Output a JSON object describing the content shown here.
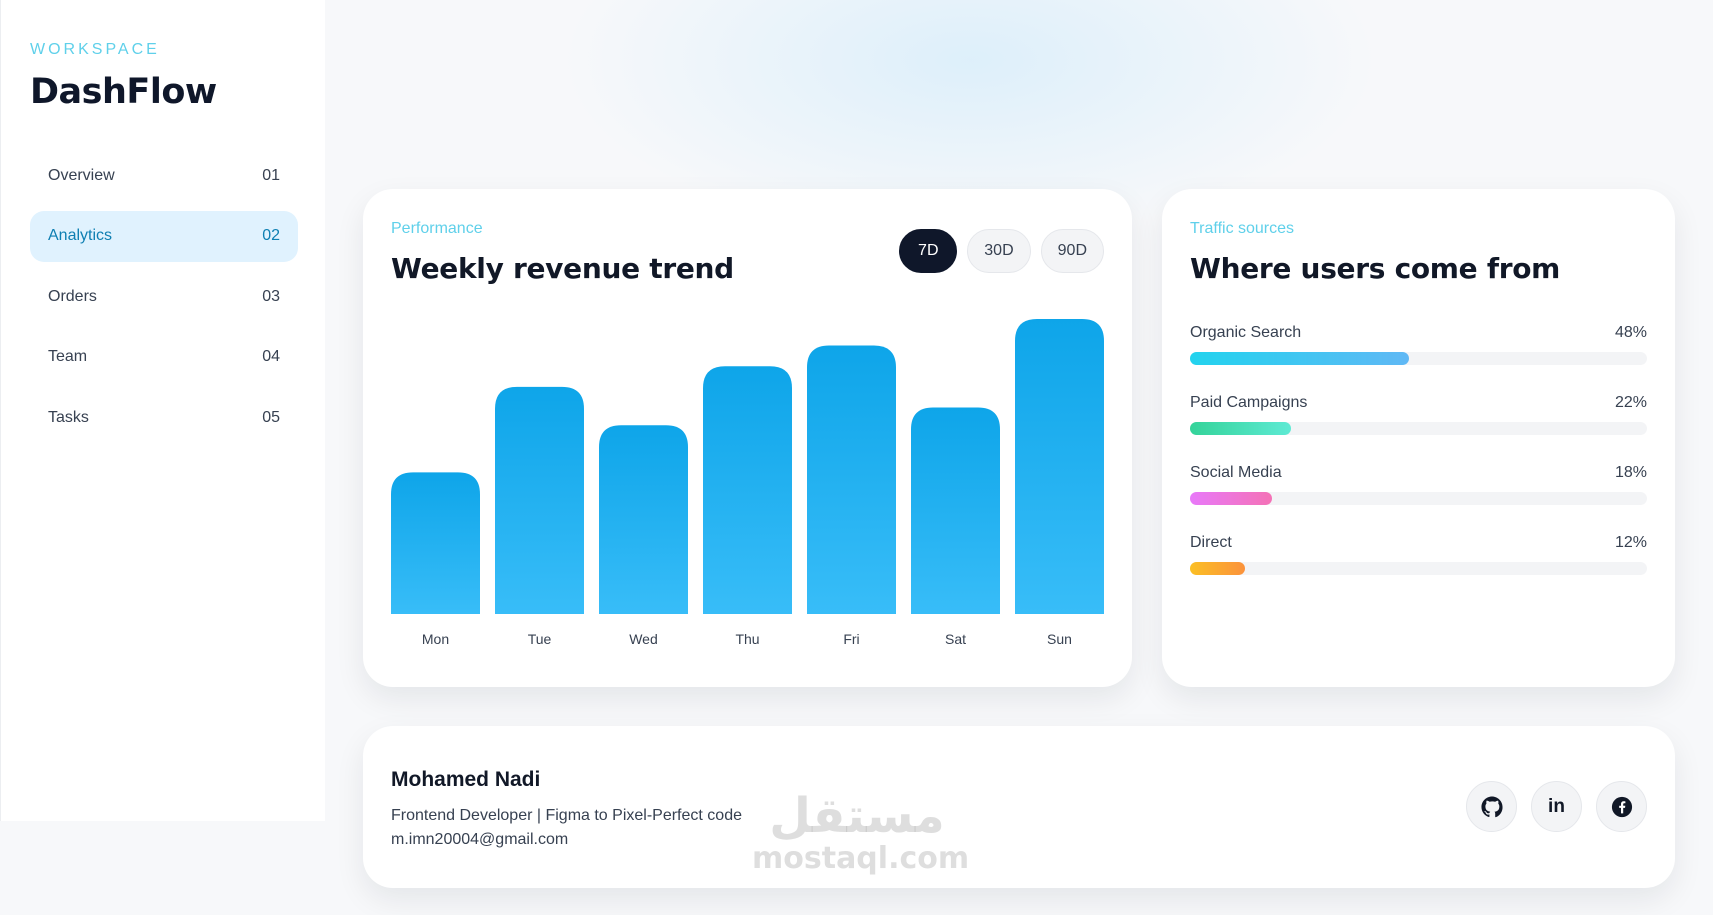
{
  "sidebar": {
    "workspace_label": "WORKSPACE",
    "brand": "DashFlow",
    "items": [
      {
        "label": "Overview",
        "num": "01",
        "active": false
      },
      {
        "label": "Analytics",
        "num": "02",
        "active": true
      },
      {
        "label": "Orders",
        "num": "03",
        "active": false
      },
      {
        "label": "Team",
        "num": "04",
        "active": false
      },
      {
        "label": "Tasks",
        "num": "05",
        "active": false
      }
    ]
  },
  "revenue": {
    "eyebrow": "Performance",
    "title": "Weekly revenue trend",
    "ranges": [
      {
        "label": "7D",
        "active": true
      },
      {
        "label": "30D",
        "active": false
      },
      {
        "label": "90D",
        "active": false
      }
    ]
  },
  "chart_data": {
    "type": "bar",
    "categories": [
      "Mon",
      "Tue",
      "Wed",
      "Thu",
      "Fri",
      "Sat",
      "Sun"
    ],
    "values": [
      48,
      77,
      64,
      84,
      91,
      70,
      100
    ],
    "ylim": [
      0,
      100
    ],
    "title": "",
    "xlabel": "",
    "ylabel": "",
    "grid": false,
    "color_top": "#0ea5e9",
    "color_bottom": "#38bdf8"
  },
  "traffic": {
    "eyebrow": "Traffic sources",
    "title": "Where users come from",
    "sources": [
      {
        "label": "Organic Search",
        "value_text": "48%",
        "value": 48,
        "color_from": "#22d3ee",
        "color_to": "#60b8f5"
      },
      {
        "label": "Paid Campaigns",
        "value_text": "22%",
        "value": 22,
        "color_from": "#34d399",
        "color_to": "#5eead4"
      },
      {
        "label": "Social Media",
        "value_text": "18%",
        "value": 18,
        "color_from": "#e879f9",
        "color_to": "#f472b6"
      },
      {
        "label": "Direct",
        "value_text": "12%",
        "value": 12,
        "color_from": "#fbbf24",
        "color_to": "#fb923c"
      }
    ]
  },
  "profile": {
    "name": "Mohamed Nadi",
    "role": "Frontend Developer | Figma to Pixel-Perfect code",
    "email": "m.imn20004@gmail.com",
    "socials": [
      {
        "name": "github-icon",
        "glyph": "GH"
      },
      {
        "name": "linkedin-icon",
        "glyph": "in"
      },
      {
        "name": "facebook-icon",
        "glyph": "f"
      }
    ]
  },
  "watermark": {
    "arabic": "مستقل",
    "latin": "mostaql.com"
  }
}
